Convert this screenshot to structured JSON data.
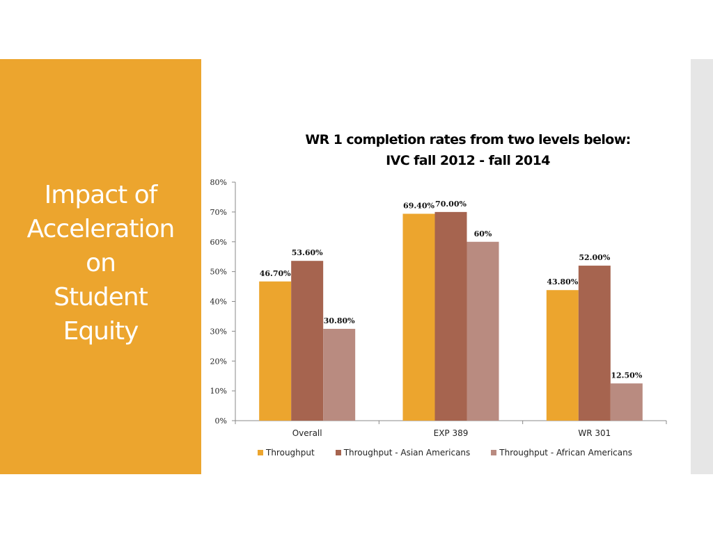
{
  "slide": {
    "side_title": "Impact of\nAcceleration\non\nStudent\nEquity"
  },
  "colors": {
    "side_panel": "#eca52e",
    "right_strip": "#e6e6e6"
  },
  "chart_data": {
    "type": "bar",
    "title": "WR 1 completion rates from two levels below:\nIVC fall 2012 - fall 2014",
    "xlabel": "",
    "ylabel": "",
    "ylim": [
      0,
      80
    ],
    "y_ticks": [
      "0%",
      "10%",
      "20%",
      "30%",
      "40%",
      "50%",
      "60%",
      "70%",
      "80%"
    ],
    "categories": [
      "Overall",
      "EXP 389",
      "WR 301"
    ],
    "grid": false,
    "legend_position": "bottom",
    "series": [
      {
        "name": "Throughput",
        "color": "#eca52e",
        "values": [
          46.7,
          69.4,
          43.8
        ],
        "labels": [
          "46.70%",
          "69.40%",
          "43.80%"
        ]
      },
      {
        "name": "Throughput - Asian Americans",
        "color": "#a6644f",
        "values": [
          53.6,
          70.0,
          52.0
        ],
        "labels": [
          "53.60%",
          "70.00%",
          "52.00%"
        ]
      },
      {
        "name": "Throughput - African Americans",
        "color": "#b98b80",
        "values": [
          30.8,
          60,
          12.5
        ],
        "labels": [
          "30.80%",
          "60%",
          "12.50%"
        ]
      }
    ]
  }
}
